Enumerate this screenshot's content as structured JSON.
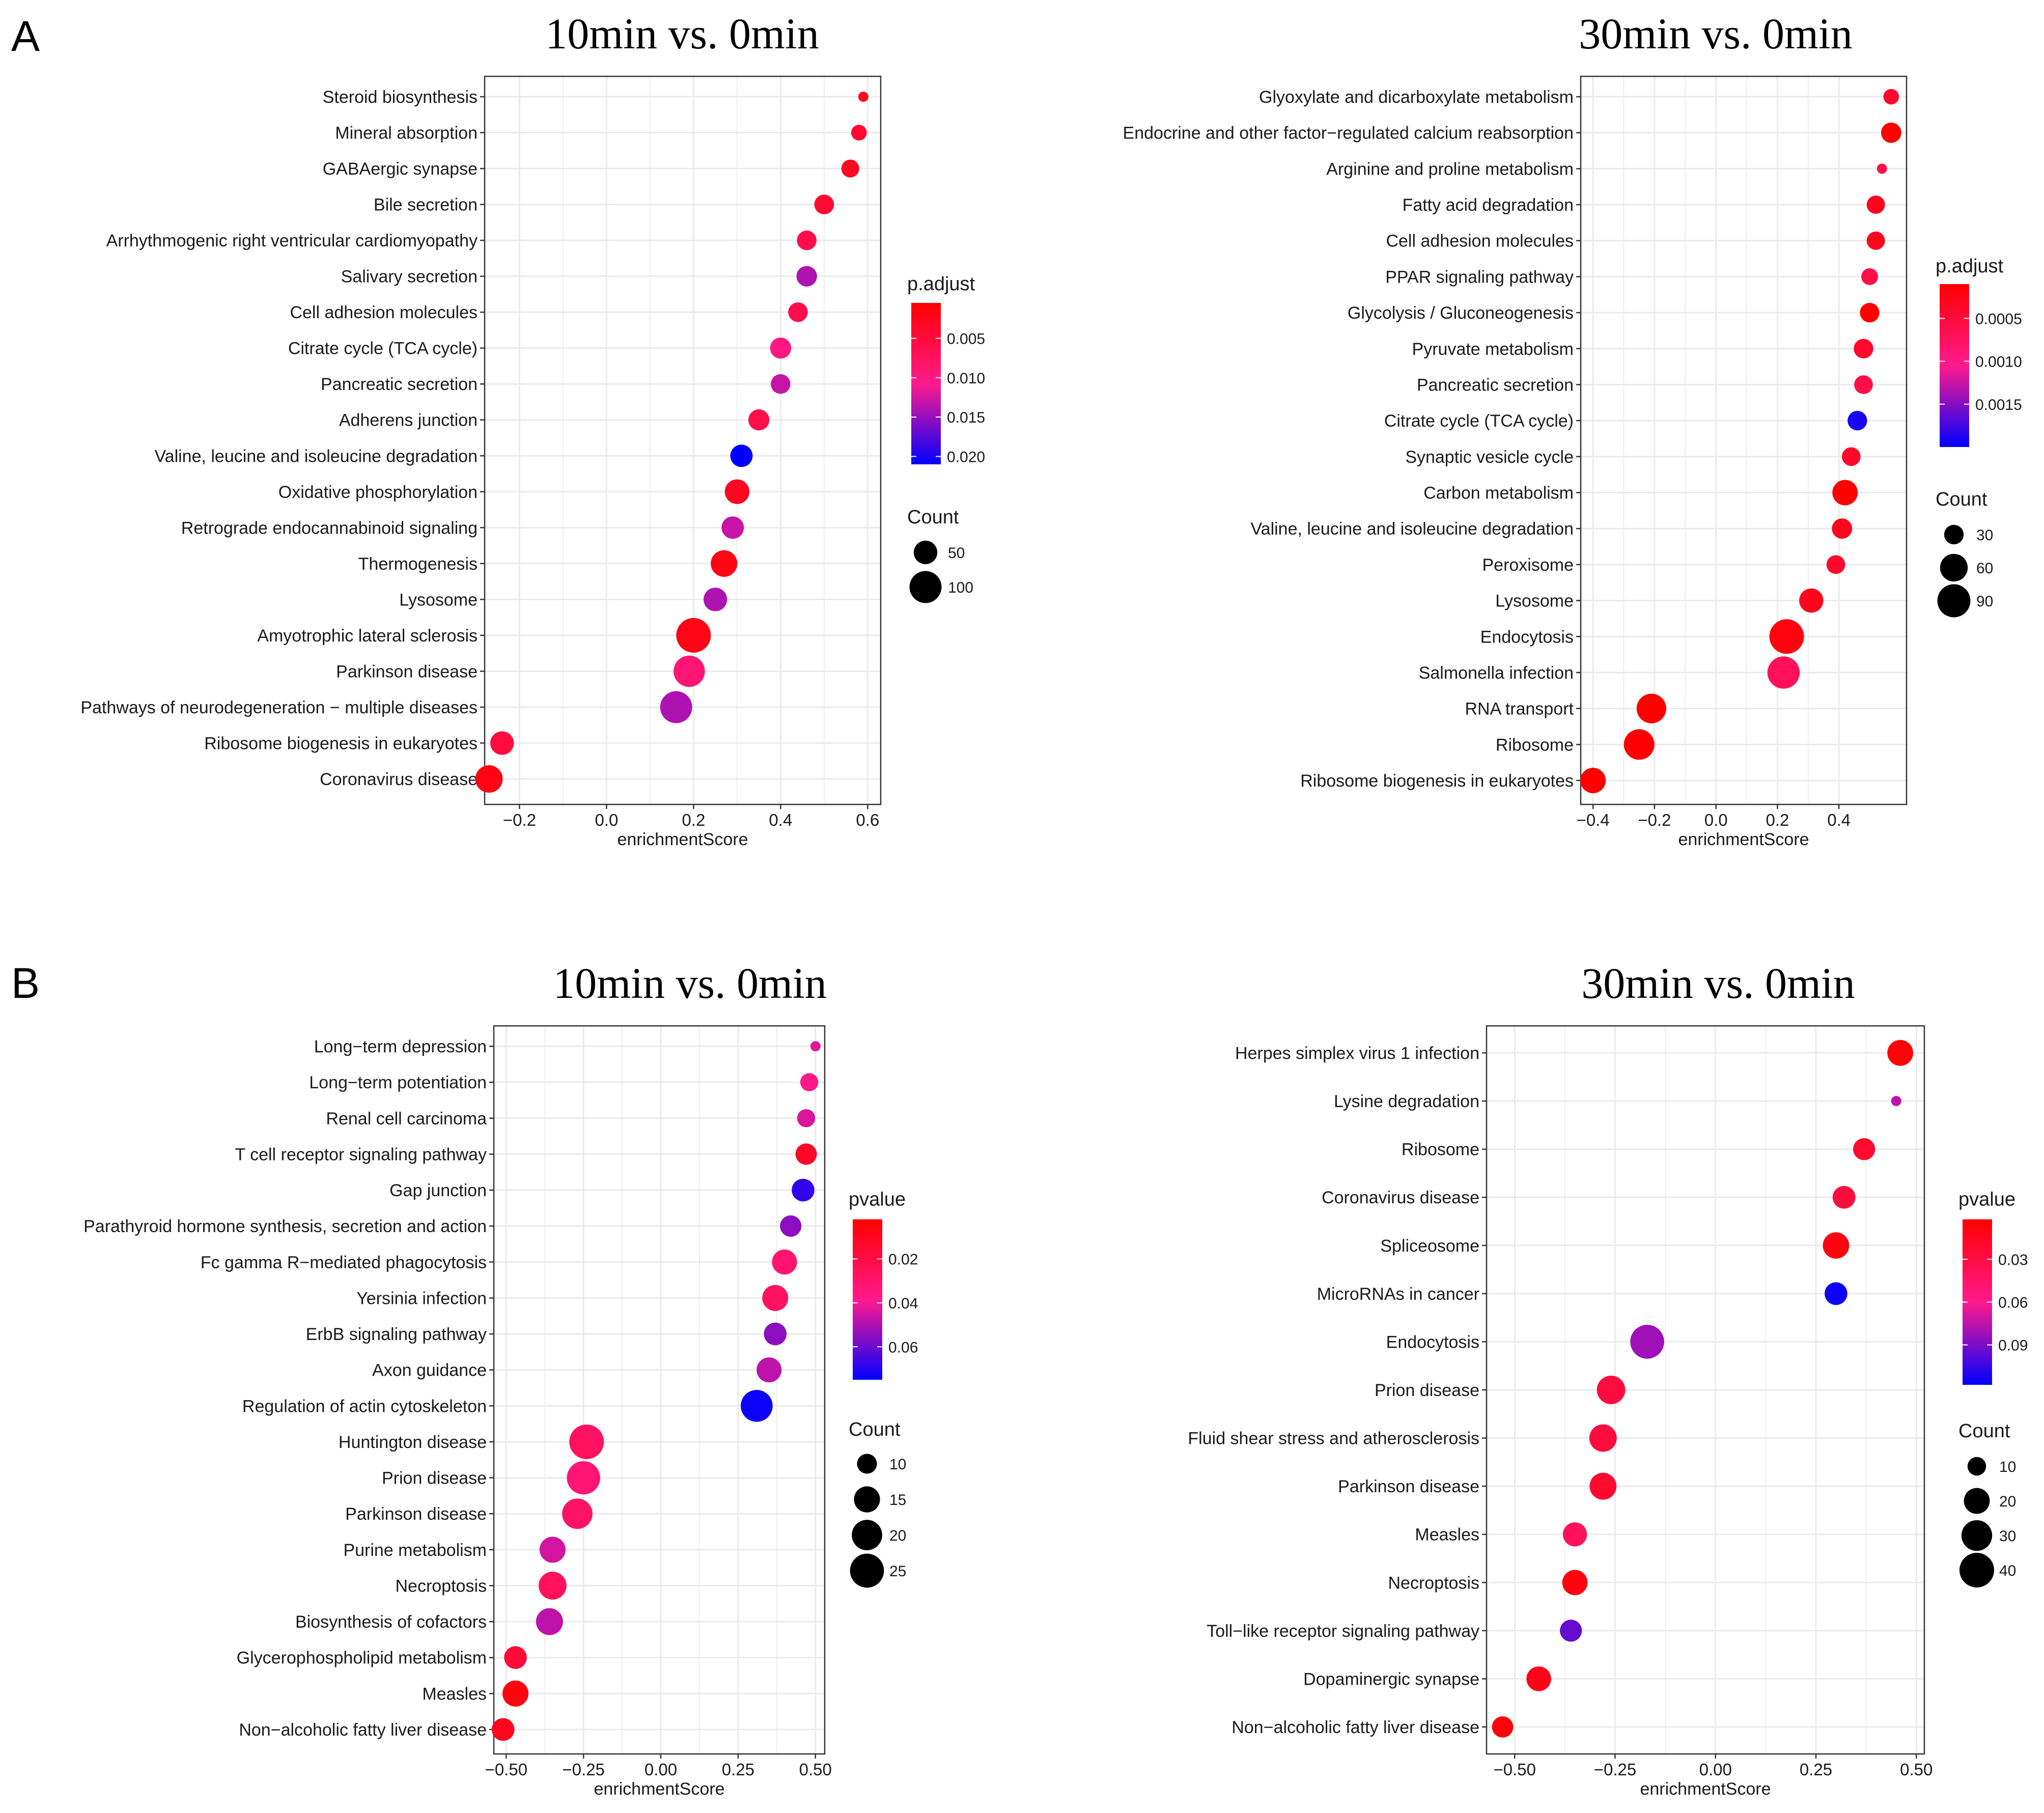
{
  "figure": {
    "panel_labels": [
      "A",
      "B"
    ]
  },
  "colors": {
    "low": "#ff0000",
    "mid": "#ff1a8c",
    "high": "#0000ff",
    "panel_bg": "#ffffff",
    "grid": "#ebebeb",
    "border": "#333333"
  },
  "chart_data": [
    {
      "type": "scatter",
      "panel": "A",
      "title": "10min vs. 0min",
      "xlabel": "enrichmentScore",
      "ylabel": "",
      "xlim": [
        -0.28,
        0.63
      ],
      "xticks": [
        -0.2,
        0.0,
        0.2,
        0.4,
        0.6
      ],
      "xtick_labels": [
        "−0.2",
        "0.0",
        "0.2",
        "0.4",
        "0.6"
      ],
      "categories": [
        "Steroid biosynthesis",
        "Mineral absorption",
        "GABAergic synapse",
        "Bile secretion",
        "Arrhythmogenic right ventricular cardiomyopathy",
        "Salivary secretion",
        "Cell adhesion molecules",
        "Citrate cycle (TCA cycle)",
        "Pancreatic secretion",
        "Adherens junction",
        "Valine, leucine and isoleucine degradation",
        "Oxidative phosphorylation",
        "Retrograde endocannabinoid signaling",
        "Thermogenesis",
        "Lysosome",
        "Amyotrophic lateral sclerosis",
        "Parkinson disease",
        "Pathways of neurodegeneration − multiple diseases",
        "Ribosome biogenesis in eukaryotes",
        "Coronavirus disease"
      ],
      "x": [
        0.59,
        0.58,
        0.56,
        0.5,
        0.46,
        0.46,
        0.44,
        0.4,
        0.4,
        0.35,
        0.31,
        0.3,
        0.29,
        0.27,
        0.25,
        0.2,
        0.19,
        0.16,
        -0.24,
        -0.27
      ],
      "size": [
        20,
        25,
        30,
        35,
        35,
        38,
        35,
        40,
        35,
        40,
        45,
        55,
        45,
        65,
        50,
        120,
        95,
        100,
        50,
        70
      ],
      "color_value": [
        0.003,
        0.004,
        0.003,
        0.004,
        0.006,
        0.014,
        0.006,
        0.01,
        0.013,
        0.006,
        0.021,
        0.003,
        0.013,
        0.002,
        0.014,
        0.002,
        0.009,
        0.014,
        0.005,
        0.002
      ],
      "color_legend": {
        "title": "p.adjust",
        "range": [
          0.021,
          0.0005
        ],
        "ticks": [
          0.005,
          0.01,
          0.015,
          0.02
        ],
        "tick_labels": [
          "0.005",
          "0.010",
          "0.015",
          "0.020"
        ]
      },
      "size_legend": {
        "title": "Count",
        "values": [
          50,
          100
        ],
        "labels": [
          "50",
          "100"
        ]
      },
      "size_domain": [
        20,
        120
      ]
    },
    {
      "type": "scatter",
      "panel": "A",
      "title": "30min vs. 0min",
      "xlabel": "enrichmentScore",
      "ylabel": "",
      "xlim": [
        -0.44,
        0.62
      ],
      "xticks": [
        -0.4,
        -0.2,
        0.0,
        0.2,
        0.4
      ],
      "xtick_labels": [
        "−0.4",
        "−0.2",
        "0.0",
        "0.2",
        "0.4"
      ],
      "categories": [
        "Glyoxylate and dicarboxylate metabolism",
        "Endocrine and other factor−regulated calcium reabsorption",
        "Arginine and proline metabolism",
        "Fatty acid degradation",
        "Cell adhesion molecules",
        "PPAR signaling pathway",
        "Glycolysis / Gluconeogenesis",
        "Pyruvate metabolism",
        "Pancreatic secretion",
        "Citrate cycle (TCA cycle)",
        "Synaptic vesicle cycle",
        "Carbon metabolism",
        "Valine, leucine and isoleucine degradation",
        "Peroxisome",
        "Lysosome",
        "Endocytosis",
        "Salmonella infection",
        "RNA transport",
        "Ribosome",
        "Ribosome biogenesis in eukaryotes"
      ],
      "x": [
        0.57,
        0.57,
        0.54,
        0.52,
        0.52,
        0.5,
        0.5,
        0.48,
        0.48,
        0.46,
        0.44,
        0.42,
        0.41,
        0.39,
        0.31,
        0.23,
        0.22,
        -0.21,
        -0.25,
        -0.4
      ],
      "size": [
        22,
        32,
        18,
        27,
        27,
        24,
        30,
        30,
        28,
        30,
        28,
        50,
        32,
        28,
        45,
        100,
        85,
        70,
        75,
        50
      ],
      "color_value": [
        0.0004,
        0.0001,
        0.0006,
        0.0003,
        0.0003,
        0.0006,
        0.0001,
        0.0004,
        0.0006,
        0.0019,
        0.0004,
        0.0001,
        0.0003,
        0.0004,
        0.0003,
        0.0002,
        0.0007,
        0.0001,
        0.0001,
        0.0001
      ],
      "color_legend": {
        "title": "p.adjust",
        "range": [
          0.002,
          0.0001
        ],
        "ticks": [
          0.0005,
          0.001,
          0.0015
        ],
        "tick_labels": [
          "0.0005",
          "0.0010",
          "0.0015"
        ]
      },
      "size_legend": {
        "title": "Count",
        "values": [
          30,
          60,
          90
        ],
        "labels": [
          "30",
          "60",
          "90"
        ]
      },
      "size_domain": [
        18,
        100
      ]
    },
    {
      "type": "scatter",
      "panel": "B",
      "title": "10min vs. 0min",
      "xlabel": "enrichmentScore",
      "ylabel": "",
      "xlim": [
        -0.54,
        0.53
      ],
      "xticks": [
        -0.5,
        -0.25,
        0.0,
        0.25,
        0.5
      ],
      "xtick_labels": [
        "−0.50",
        "−0.25",
        "0.00",
        "0.25",
        "0.50"
      ],
      "categories": [
        "Long−term depression",
        "Long−term potentiation",
        "Renal cell carcinoma",
        "T cell receptor signaling pathway",
        "Gap junction",
        "Parathyroid hormone synthesis, secretion and action",
        "Fc gamma R−mediated phagocytosis",
        "Yersinia infection",
        "ErbB signaling pathway",
        "Axon guidance",
        "Regulation of actin cytoskeleton",
        "Huntington disease",
        "Prion disease",
        "Parkinson disease",
        "Purine metabolism",
        "Necroptosis",
        "Biosynthesis of cofactors",
        "Glycerophospholipid metabolism",
        "Measles",
        "Non−alcoholic fatty liver disease"
      ],
      "x": [
        0.5,
        0.48,
        0.47,
        0.47,
        0.46,
        0.42,
        0.4,
        0.37,
        0.37,
        0.35,
        0.31,
        -0.24,
        -0.25,
        -0.27,
        -0.35,
        -0.35,
        -0.36,
        -0.47,
        -0.47,
        -0.51
      ],
      "size": [
        7,
        9,
        9,
        11,
        12,
        11,
        14,
        15,
        12,
        14,
        22,
        26,
        24,
        20,
        15,
        17,
        16,
        12,
        15,
        12
      ],
      "color_value": [
        0.043,
        0.037,
        0.044,
        0.012,
        0.068,
        0.055,
        0.031,
        0.027,
        0.055,
        0.048,
        0.073,
        0.027,
        0.032,
        0.028,
        0.045,
        0.026,
        0.048,
        0.017,
        0.006,
        0.01
      ],
      "color_legend": {
        "title": "pvalue",
        "range": [
          0.075,
          0.002
        ],
        "ticks": [
          0.02,
          0.04,
          0.06
        ],
        "tick_labels": [
          "0.02",
          "0.04",
          "0.06"
        ]
      },
      "size_legend": {
        "title": "Count",
        "values": [
          10,
          15,
          20,
          25
        ],
        "labels": [
          "10",
          "15",
          "20",
          "25"
        ]
      },
      "size_domain": [
        7,
        26
      ]
    },
    {
      "type": "scatter",
      "panel": "B",
      "title": "30min vs. 0min",
      "xlabel": "enrichmentScore",
      "ylabel": "",
      "xlim": [
        -0.57,
        0.52
      ],
      "xticks": [
        -0.5,
        -0.25,
        0.0,
        0.25,
        0.5
      ],
      "xtick_labels": [
        "−0.50",
        "−0.25",
        "0.00",
        "0.25",
        "0.50"
      ],
      "categories": [
        "Herpes simplex virus 1 infection",
        "Lysine degradation",
        "Ribosome",
        "Coronavirus disease",
        "Spliceosome",
        "MicroRNAs in cancer",
        "Endocytosis",
        "Prion disease",
        "Fluid shear stress and atherosclerosis",
        "Parkinson disease",
        "Measles",
        "Necroptosis",
        "Toll−like receptor signaling pathway",
        "Dopaminergic synapse",
        "Non−alcoholic fatty liver disease"
      ],
      "x": [
        0.46,
        0.45,
        0.37,
        0.32,
        0.3,
        0.3,
        -0.17,
        -0.26,
        -0.28,
        -0.28,
        -0.35,
        -0.35,
        -0.36,
        -0.44,
        -0.53
      ],
      "size": [
        20,
        6,
        14,
        15,
        21,
        15,
        38,
        25,
        23,
        22,
        17,
        19,
        14,
        18,
        13
      ],
      "color_value": [
        0.005,
        0.075,
        0.022,
        0.028,
        0.008,
        0.115,
        0.082,
        0.028,
        0.028,
        0.022,
        0.04,
        0.008,
        0.095,
        0.012,
        0.005
      ],
      "color_legend": {
        "title": "pvalue",
        "range": [
          0.118,
          0.002
        ],
        "ticks": [
          0.03,
          0.06,
          0.09
        ],
        "tick_labels": [
          "0.03",
          "0.06",
          "0.09"
        ]
      },
      "size_legend": {
        "title": "Count",
        "values": [
          10,
          20,
          30,
          40
        ],
        "labels": [
          "10",
          "20",
          "30",
          "40"
        ]
      },
      "size_domain": [
        6,
        40
      ]
    }
  ]
}
